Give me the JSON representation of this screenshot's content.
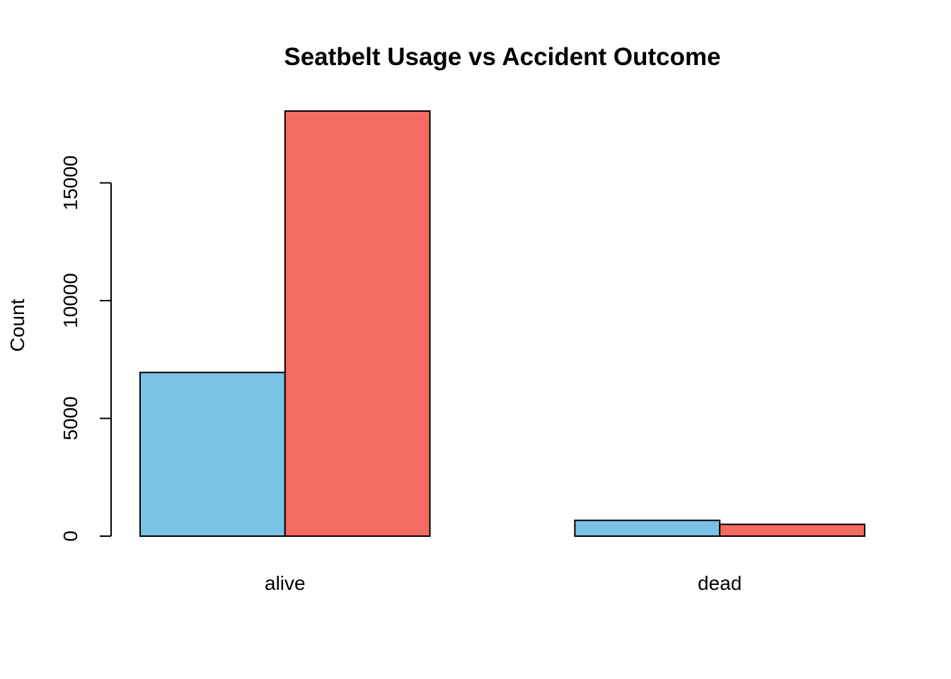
{
  "chart_data": {
    "type": "bar",
    "title": "Seatbelt Usage vs Accident Outcome",
    "xlabel": "",
    "ylabel": "Count",
    "categories": [
      "alive",
      "dead"
    ],
    "series": [
      {
        "color": "#7BC3E5",
        "values": [
          6950,
          670
        ]
      },
      {
        "color": "#F46B61",
        "values": [
          18050,
          500
        ]
      }
    ],
    "ylim": [
      0,
      18050
    ],
    "yticks": [
      0,
      5000,
      10000,
      15000
    ],
    "ytick_labels": [
      "0",
      "5000",
      "10000",
      "15000"
    ],
    "grid": false,
    "legend": "none"
  }
}
